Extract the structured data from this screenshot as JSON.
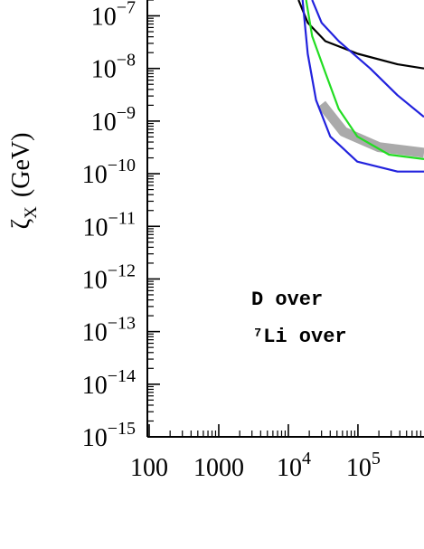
{
  "chart_data": {
    "type": "line",
    "log_x": true,
    "log_y": true,
    "ylabel": {
      "symbol": "ζ",
      "subscript": "X",
      "unit": "(GeV)"
    },
    "xlim": [
      100,
      890000
    ],
    "ylim": [
      1e-15,
      2e-07
    ],
    "xticks": [
      100,
      1000,
      {
        "value": 10000,
        "label": "10",
        "exponent": "4"
      },
      {
        "value": 100000,
        "label": "10",
        "exponent": "5"
      }
    ],
    "yticks": [
      {
        "value": 1e-07,
        "label": "10",
        "exponent": "−7"
      },
      {
        "value": 1e-08,
        "label": "10",
        "exponent": "−8"
      },
      {
        "value": 1e-09,
        "label": "10",
        "exponent": "−9"
      },
      {
        "value": 1e-10,
        "label": "10",
        "exponent": "−10"
      },
      {
        "value": 1e-11,
        "label": "10",
        "exponent": "−11"
      },
      {
        "value": 1e-12,
        "label": "10",
        "exponent": "−12"
      },
      {
        "value": 1e-13,
        "label": "10",
        "exponent": "−13"
      },
      {
        "value": 1e-14,
        "label": "10",
        "exponent": "−14"
      },
      {
        "value": 1e-15,
        "label": "10",
        "exponent": "−15"
      }
    ],
    "series": [
      {
        "color": "#aaaaaa",
        "style": "band",
        "x": [
          30000,
          62000,
          200000,
          890000
        ],
        "values": [
          2.1e-09,
          6.3e-10,
          3.2e-10,
          2.5e-10
        ]
      },
      {
        "color": "#000000",
        "x": [
          14000,
          19000,
          34000,
          100000,
          370000,
          890000
        ],
        "values": [
          2e-07,
          7.4e-08,
          3.3e-08,
          1.9e-08,
          1.2e-08,
          1e-08
        ]
      },
      {
        "color": "#22dd22",
        "x": [
          18000,
          22000,
          34000,
          53000,
          98000,
          280000,
          890000
        ],
        "values": [
          2e-07,
          4.1e-08,
          8.3e-09,
          1.7e-09,
          5.1e-10,
          2.3e-10,
          1.9e-10
        ]
      },
      {
        "color": "#2222dd",
        "x": [
          22000,
          30000,
          53000,
          150000,
          370000,
          890000
        ],
        "values": [
          2e-07,
          7.4e-08,
          3.3e-08,
          1e-08,
          3.1e-09,
          1.2e-09
        ]
      },
      {
        "color": "#2222dd",
        "x": [
          16000,
          19000,
          25000,
          40000,
          98000,
          370000,
          890000
        ],
        "values": [
          2e-07,
          1.9e-08,
          2.5e-09,
          5.1e-10,
          1.7e-10,
          1.1e-10,
          1.1e-10
        ]
      }
    ],
    "legend": [
      {
        "text": "D over",
        "color": "#22dd22"
      },
      {
        "text": "⁷Li over",
        "color": "#2222dd"
      }
    ]
  }
}
